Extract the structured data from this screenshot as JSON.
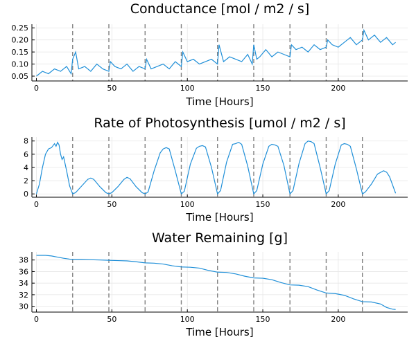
{
  "chart_data": [
    {
      "type": "line",
      "title": "Conductance [mol / m2 / s]",
      "xlabel": "Time [Hours]",
      "ylabel": "",
      "xlim": [
        -3,
        246
      ],
      "ylim": [
        0.03,
        0.265
      ],
      "xticks": [
        0,
        50,
        100,
        150,
        200
      ],
      "yticks": [
        0.05,
        0.1,
        0.15,
        0.2,
        0.25
      ],
      "ytick_labels": [
        "0.05",
        "0.10",
        "0.15",
        "0.20",
        "0.25"
      ],
      "grid": true,
      "vlines": [
        24,
        48,
        72,
        96,
        120,
        144,
        168,
        192,
        216
      ],
      "series": [
        {
          "color": "#1f8fd8",
          "x": [
            0,
            4,
            8,
            12,
            16,
            20,
            23,
            24,
            26,
            28,
            32,
            36,
            40,
            44,
            48,
            49,
            52,
            56,
            60,
            64,
            68,
            72,
            73,
            76,
            80,
            84,
            88,
            92,
            96,
            97,
            100,
            104,
            108,
            112,
            116,
            120,
            121,
            124,
            128,
            132,
            136,
            140,
            143,
            144,
            146,
            148,
            152,
            156,
            160,
            164,
            168,
            169,
            172,
            176,
            180,
            184,
            188,
            192,
            193,
            196,
            200,
            204,
            208,
            212,
            216,
            217,
            220,
            224,
            228,
            232,
            236,
            238
          ],
          "y": [
            0.05,
            0.07,
            0.06,
            0.08,
            0.07,
            0.09,
            0.06,
            0.12,
            0.15,
            0.08,
            0.09,
            0.07,
            0.1,
            0.08,
            0.07,
            0.11,
            0.09,
            0.08,
            0.1,
            0.07,
            0.09,
            0.08,
            0.12,
            0.08,
            0.09,
            0.1,
            0.08,
            0.11,
            0.09,
            0.15,
            0.11,
            0.12,
            0.1,
            0.11,
            0.12,
            0.1,
            0.18,
            0.11,
            0.13,
            0.12,
            0.11,
            0.14,
            0.1,
            0.18,
            0.12,
            0.13,
            0.16,
            0.13,
            0.15,
            0.14,
            0.13,
            0.18,
            0.16,
            0.17,
            0.15,
            0.18,
            0.16,
            0.17,
            0.2,
            0.18,
            0.17,
            0.19,
            0.21,
            0.18,
            0.2,
            0.24,
            0.2,
            0.22,
            0.19,
            0.21,
            0.18,
            0.19
          ]
        }
      ]
    },
    {
      "type": "line",
      "title": "Rate of Photosynthesis [umol / m2 / s]",
      "xlabel": "Time [Hours]",
      "ylabel": "",
      "xlim": [
        -3,
        246
      ],
      "ylim": [
        -0.5,
        8.6
      ],
      "xticks": [
        0,
        50,
        100,
        150,
        200
      ],
      "yticks": [
        0,
        2,
        4,
        6,
        8
      ],
      "ytick_labels": [
        "0",
        "2",
        "4",
        "6",
        "8"
      ],
      "grid": true,
      "vlines": [
        24,
        48,
        72,
        96,
        120,
        144,
        168,
        192,
        216
      ],
      "series": [
        {
          "color": "#1f8fd8",
          "x": [
            0,
            2,
            4,
            6,
            8,
            10,
            12,
            13,
            14,
            15,
            16,
            17,
            18,
            20,
            22,
            24,
            26,
            30,
            34,
            36,
            38,
            42,
            46,
            48,
            50,
            54,
            58,
            60,
            62,
            66,
            70,
            72,
            74,
            78,
            82,
            84,
            86,
            88,
            92,
            96,
            98,
            102,
            106,
            108,
            110,
            112,
            116,
            120,
            122,
            126,
            130,
            132,
            134,
            136,
            140,
            144,
            146,
            150,
            154,
            156,
            158,
            160,
            164,
            168,
            170,
            174,
            178,
            180,
            182,
            184,
            188,
            192,
            194,
            198,
            202,
            204,
            206,
            208,
            212,
            216,
            218,
            222,
            226,
            230,
            232,
            234,
            238
          ],
          "y": [
            0,
            1.5,
            4.0,
            6.0,
            6.8,
            7.0,
            7.6,
            7.2,
            7.8,
            7.4,
            6.0,
            5.2,
            5.6,
            3.5,
            1.2,
            0,
            0.2,
            1.2,
            2.2,
            2.4,
            2.2,
            1.1,
            0.2,
            0,
            0.2,
            1.1,
            2.2,
            2.5,
            2.3,
            1.1,
            0.2,
            0,
            0.3,
            3.5,
            6.2,
            6.8,
            7.0,
            6.8,
            3.5,
            0,
            0.4,
            4.5,
            6.9,
            7.2,
            7.3,
            7.1,
            4.0,
            0,
            0.5,
            4.8,
            7.5,
            7.6,
            7.8,
            7.5,
            4.2,
            0,
            0.5,
            4.5,
            7.2,
            7.5,
            7.4,
            7.2,
            4.3,
            0,
            0.5,
            4.6,
            7.6,
            8.0,
            7.9,
            7.6,
            4.0,
            0,
            0.5,
            4.5,
            7.4,
            7.6,
            7.5,
            7.2,
            3.8,
            0,
            0.3,
            1.5,
            3.0,
            3.5,
            3.3,
            2.6,
            0.1
          ]
        }
      ]
    },
    {
      "type": "line",
      "title": "Water Remaining [g]",
      "xlabel": "Time [Hours]",
      "ylabel": "",
      "xlim": [
        -3,
        246
      ],
      "ylim": [
        29.0,
        39.4
      ],
      "xticks": [
        0,
        50,
        100,
        150,
        200
      ],
      "yticks": [
        30,
        32,
        34,
        36,
        38
      ],
      "ytick_labels": [
        "30",
        "32",
        "34",
        "36",
        "38"
      ],
      "grid": true,
      "vlines": [
        24,
        48,
        72,
        96,
        120,
        144,
        168,
        192,
        216
      ],
      "series": [
        {
          "color": "#1f8fd8",
          "x": [
            0,
            6,
            10,
            14,
            18,
            22,
            24,
            30,
            36,
            42,
            48,
            54,
            60,
            66,
            72,
            78,
            84,
            90,
            96,
            102,
            108,
            114,
            120,
            126,
            132,
            138,
            144,
            150,
            156,
            162,
            168,
            174,
            180,
            186,
            192,
            198,
            204,
            210,
            216,
            222,
            228,
            232,
            236,
            238
          ],
          "y": [
            38.8,
            38.8,
            38.7,
            38.5,
            38.3,
            38.15,
            38.1,
            38.1,
            38.05,
            38.0,
            37.95,
            37.9,
            37.85,
            37.7,
            37.5,
            37.45,
            37.3,
            37.0,
            36.8,
            36.75,
            36.6,
            36.2,
            35.9,
            35.85,
            35.6,
            35.2,
            34.9,
            34.85,
            34.6,
            34.1,
            33.7,
            33.65,
            33.4,
            32.8,
            32.3,
            32.2,
            31.9,
            31.3,
            30.8,
            30.75,
            30.4,
            29.8,
            29.5,
            29.45
          ]
        }
      ]
    }
  ]
}
